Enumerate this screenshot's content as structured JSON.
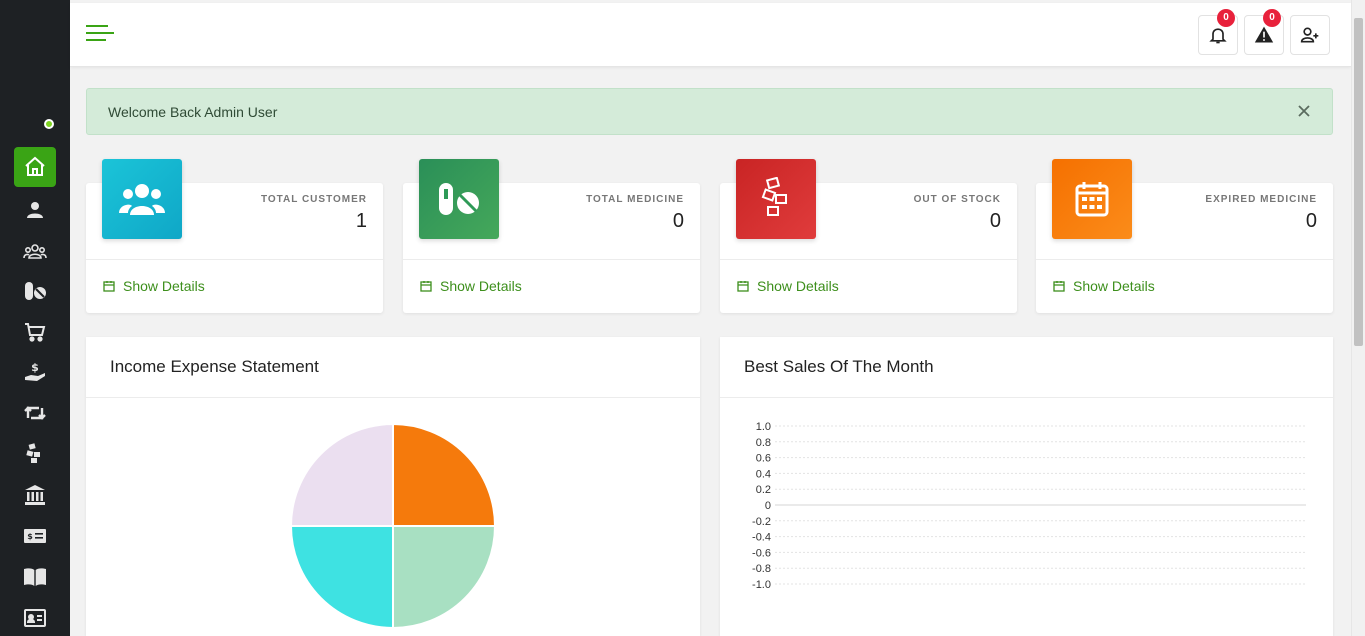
{
  "sidebar": {
    "items": [
      {
        "icon": "home-icon",
        "active": true
      },
      {
        "icon": "user-tie-icon"
      },
      {
        "icon": "users-icon"
      },
      {
        "icon": "pills-icon"
      },
      {
        "icon": "cart-icon"
      },
      {
        "icon": "hand-dollar-icon"
      },
      {
        "icon": "retweet-icon"
      },
      {
        "icon": "boxes-icon"
      },
      {
        "icon": "bank-icon"
      },
      {
        "icon": "money-check-icon"
      },
      {
        "icon": "book-icon"
      },
      {
        "icon": "id-card-icon"
      }
    ]
  },
  "header": {
    "notifications_count": "0",
    "alerts_count": "0"
  },
  "alert": {
    "message": "Welcome Back Admin User"
  },
  "cards": [
    {
      "label": "TOTAL CUSTOMER",
      "value": "1",
      "link": "Show Details",
      "color": "#17b6d1",
      "icon": "users-icon"
    },
    {
      "label": "TOTAL MEDICINE",
      "value": "0",
      "link": "Show Details",
      "color": "#2e9a57",
      "icon": "pills-icon"
    },
    {
      "label": "OUT OF STOCK",
      "value": "0",
      "link": "Show Details",
      "color": "#d42b2b",
      "icon": "boxes-icon"
    },
    {
      "label": "EXPIRED MEDICINE",
      "value": "0",
      "link": "Show Details",
      "color": "#f57c00",
      "icon": "calendar-icon"
    }
  ],
  "income_panel": {
    "title": "Income Expense Statement"
  },
  "sales_panel": {
    "title": "Best Sales Of The Month"
  },
  "chart_data": [
    {
      "type": "pie",
      "values": [
        25,
        25,
        25,
        25
      ],
      "colors": [
        "#f57a0c",
        "#a8e0c2",
        "#3ee2e2",
        "#ebdff0"
      ]
    },
    {
      "type": "line",
      "series": [],
      "yticks": [
        "1.0",
        "0.8",
        "0.6",
        "0.4",
        "0.2",
        "0",
        "-0.2",
        "-0.4",
        "-0.6",
        "-0.8",
        "-1.0"
      ],
      "ylim": [
        -1.0,
        1.0
      ],
      "grid": true
    }
  ],
  "colors": {
    "accent": "#3aa415",
    "sidebar_bg": "#1e2124",
    "badge": "#e8213b"
  }
}
